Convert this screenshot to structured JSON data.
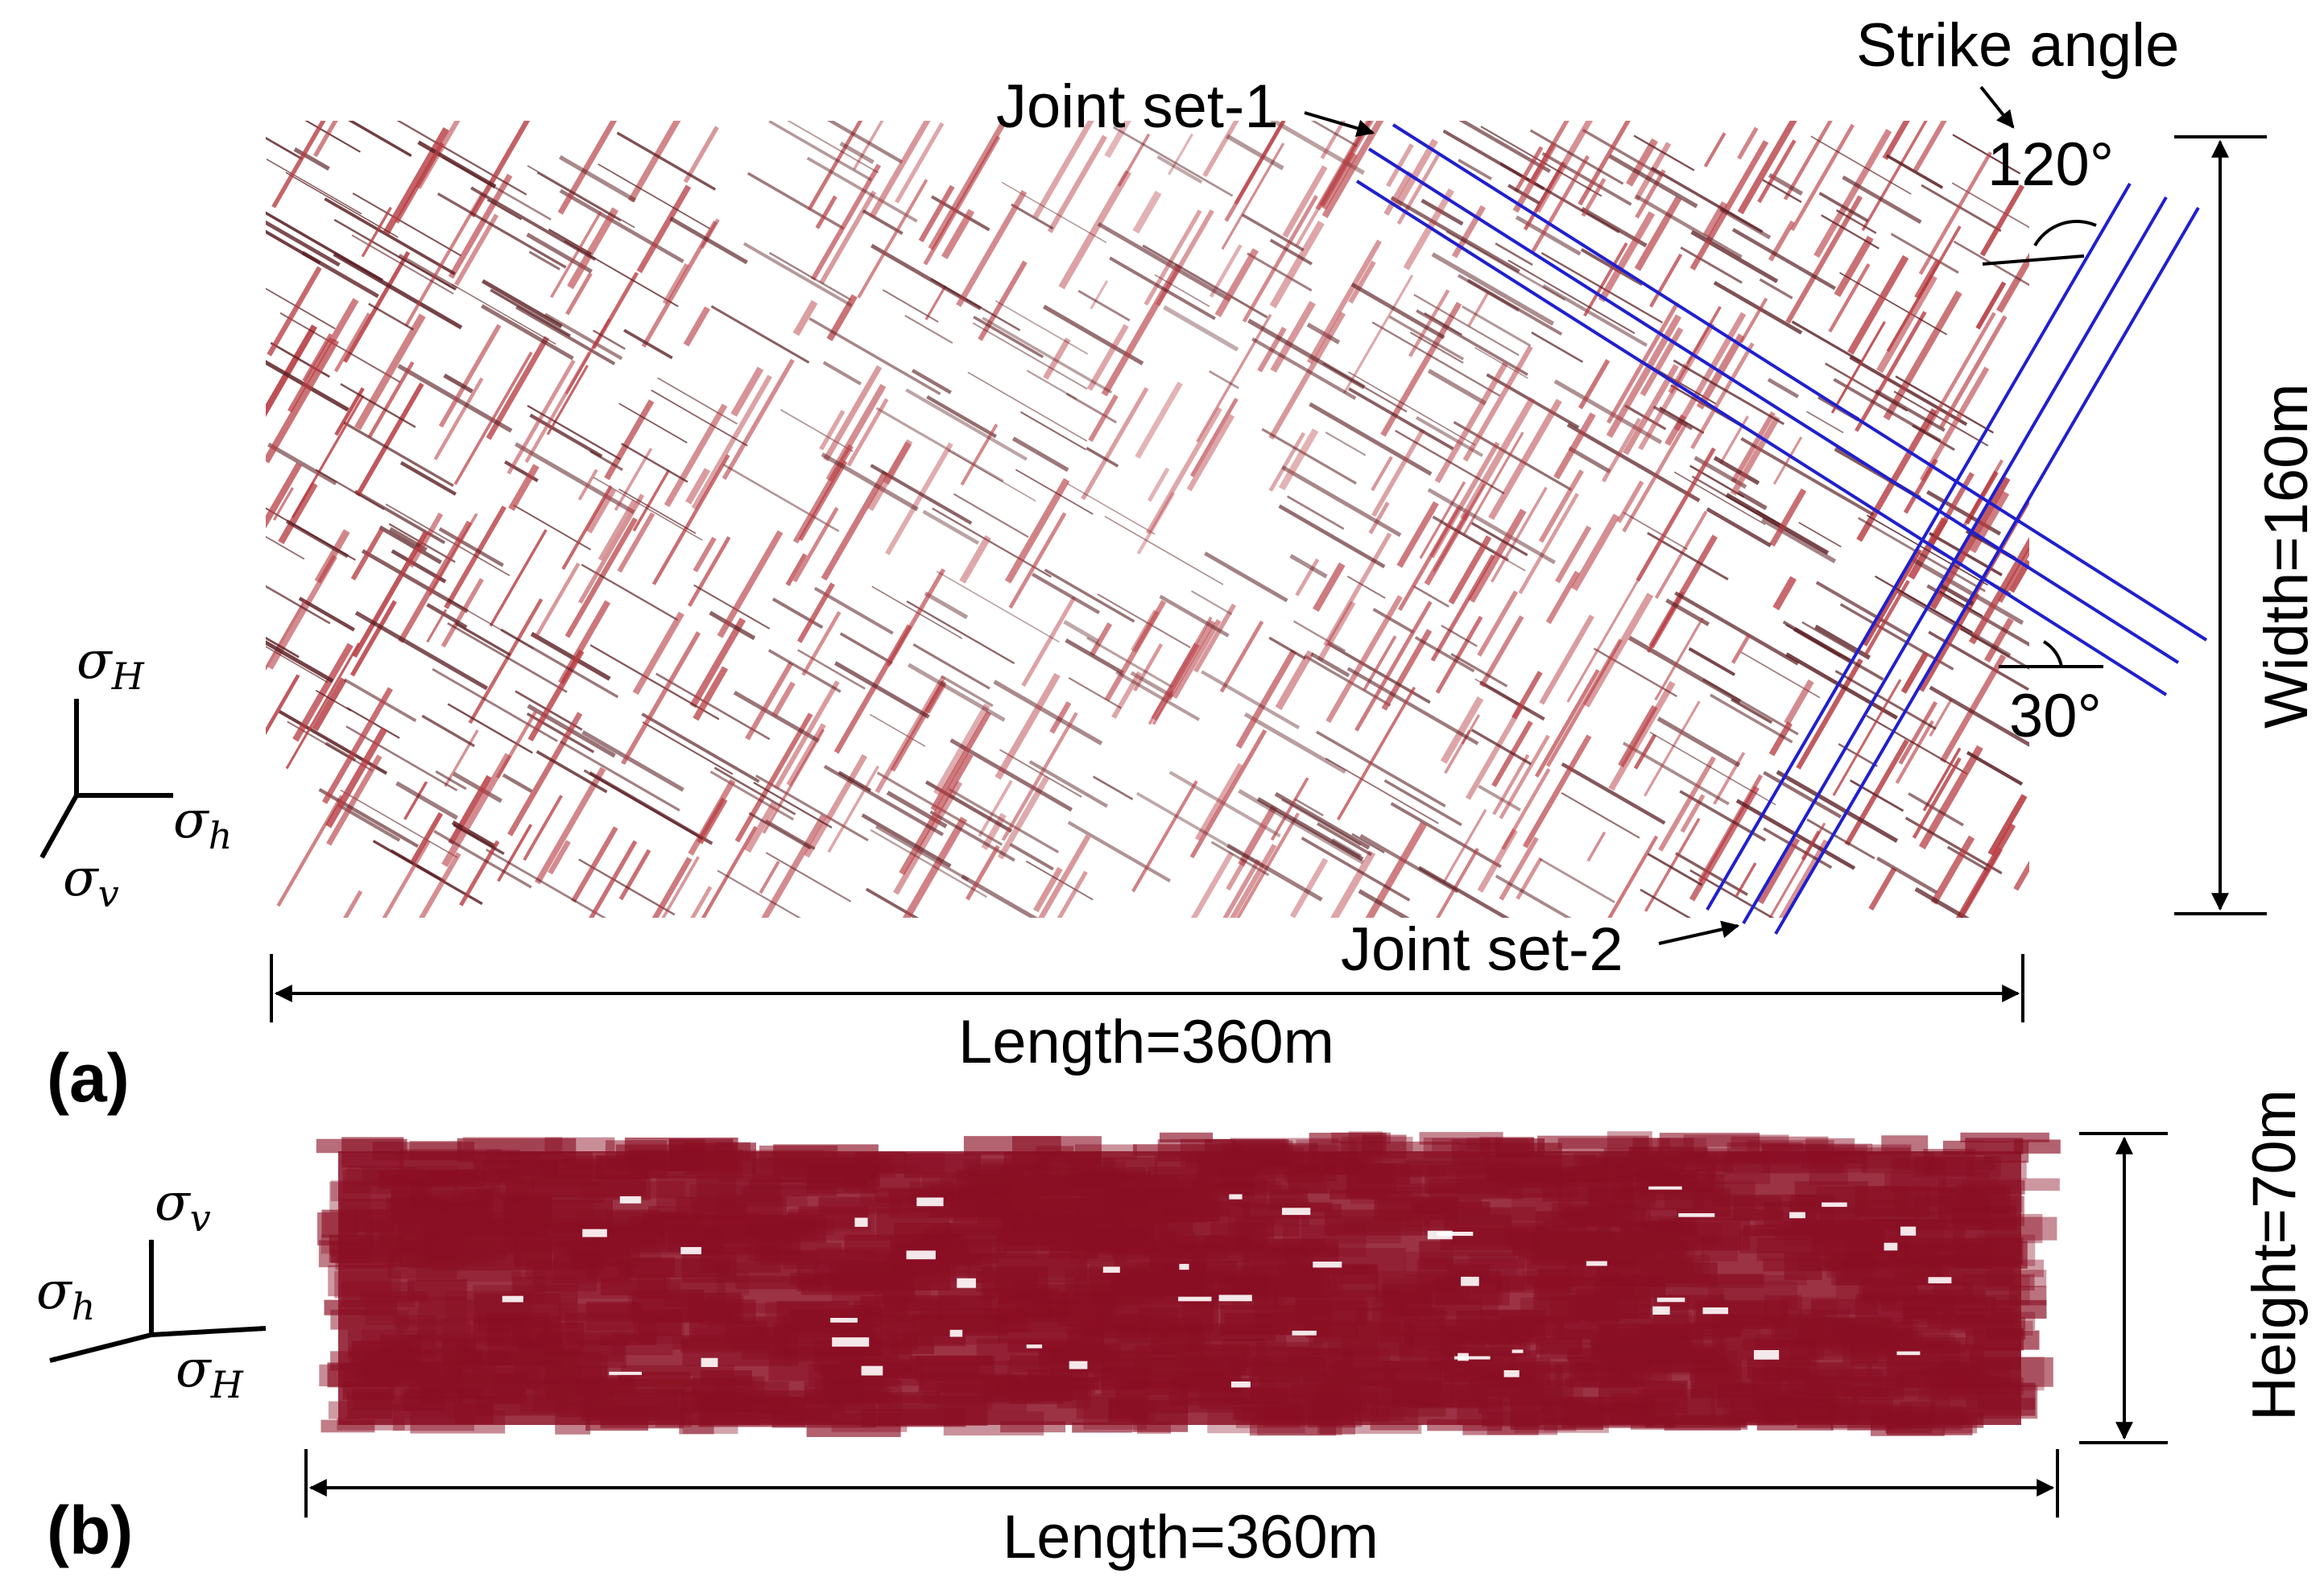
{
  "panel_a": {
    "label": "(a)",
    "joint_set_1": "Joint set-1",
    "joint_set_2": "Joint set-2",
    "strike_angle": "Strike angle",
    "angle_120": "120°",
    "angle_30": "30°",
    "width_label": "Width=160m",
    "length_label": "Length=360m",
    "axes": {
      "sigma": "σ",
      "H": "H",
      "h": "h",
      "v": "v"
    }
  },
  "panel_b": {
    "label": "(b)",
    "height_label": "Height=70m",
    "length_label": "Length=360m",
    "axes": {
      "sigma": "σ",
      "H": "H",
      "h": "h",
      "v": "v"
    }
  },
  "colors": {
    "joint_set_1_trace": "#5a1e22",
    "joint_set_2_trace": "#b53a40",
    "strike_lines": "#1f1fd0",
    "fracture_fill": "#8a0f24"
  }
}
